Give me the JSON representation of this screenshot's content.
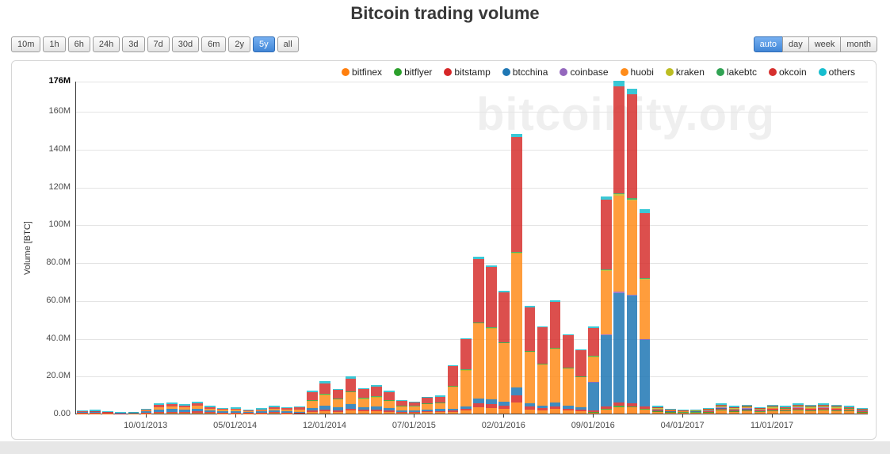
{
  "page": {
    "title": "Bitcoin trading volume",
    "watermark": "bitcoinity.org"
  },
  "toolbar": {
    "intervals": [
      {
        "label": "10m",
        "active": false
      },
      {
        "label": "1h",
        "active": false
      },
      {
        "label": "6h",
        "active": false
      },
      {
        "label": "24h",
        "active": false
      },
      {
        "label": "3d",
        "active": false
      },
      {
        "label": "7d",
        "active": false
      },
      {
        "label": "30d",
        "active": false
      },
      {
        "label": "6m",
        "active": false
      },
      {
        "label": "2y",
        "active": false
      },
      {
        "label": "5y",
        "active": true
      },
      {
        "label": "all",
        "active": false
      }
    ],
    "groupings": [
      {
        "label": "auto",
        "active": true
      },
      {
        "label": "day",
        "active": false
      },
      {
        "label": "week",
        "active": false
      },
      {
        "label": "month",
        "active": false
      }
    ]
  },
  "chart_data": {
    "type": "bar",
    "stacked": true,
    "title": "Bitcoin trading volume",
    "xlabel": "",
    "ylabel": "Volume [BTC]",
    "unit": "million BTC per month",
    "ymax": 176,
    "ymin": 0,
    "grid": true,
    "legend_position": "top",
    "yticks": [
      "0.00",
      "20.0M",
      "40.0M",
      "60.0M",
      "80.0M",
      "100M",
      "120M",
      "140M",
      "160M",
      "176M"
    ],
    "ytick_values": [
      0,
      20,
      40,
      60,
      80,
      100,
      120,
      140,
      160,
      176
    ],
    "xtick_labels": [
      "10/01/2013",
      "05/01/2014",
      "12/01/2014",
      "07/01/2015",
      "02/01/2016",
      "09/01/2016",
      "04/01/2017",
      "11/01/2017"
    ],
    "xtick_indices": [
      5,
      12,
      19,
      26,
      33,
      40,
      47,
      54
    ],
    "categories": [
      "05/2013",
      "06/2013",
      "07/2013",
      "08/2013",
      "09/2013",
      "10/2013",
      "11/2013",
      "12/2013",
      "01/2014",
      "02/2014",
      "03/2014",
      "04/2014",
      "05/2014",
      "06/2014",
      "07/2014",
      "08/2014",
      "09/2014",
      "10/2014",
      "11/2014",
      "12/2014",
      "01/2015",
      "02/2015",
      "03/2015",
      "04/2015",
      "05/2015",
      "06/2015",
      "07/2015",
      "08/2015",
      "09/2015",
      "10/2015",
      "11/2015",
      "12/2015",
      "01/2016",
      "02/2016",
      "03/2016",
      "04/2016",
      "05/2016",
      "06/2016",
      "07/2016",
      "08/2016",
      "09/2016",
      "10/2016",
      "11/2016",
      "12/2016",
      "01/2017",
      "02/2017",
      "03/2017",
      "04/2017",
      "05/2017",
      "06/2017",
      "07/2017",
      "08/2017",
      "09/2017",
      "10/2017",
      "11/2017",
      "12/2017",
      "01/2018",
      "02/2018",
      "03/2018",
      "04/2018",
      "05/2018",
      "06/2018"
    ],
    "series": [
      {
        "name": "bitfinex",
        "color": "#ff7f0e",
        "values": [
          0.1,
          0.1,
          0.1,
          0,
          0.1,
          0.2,
          0.4,
          0.4,
          0.4,
          0.5,
          0.3,
          0.2,
          0.2,
          0.2,
          0.2,
          0.3,
          0.2,
          0.3,
          1.0,
          1.3,
          1.0,
          1.5,
          1.1,
          1.2,
          1.0,
          0.6,
          0.5,
          0.7,
          0.8,
          1.0,
          1.6,
          3.3,
          3.1,
          2.6,
          5.9,
          2.3,
          1.8,
          2.4,
          1.7,
          1.4,
          0.9,
          2.3,
          3.5,
          3.4,
          2.2,
          1.1,
          0.7,
          0.6,
          0.6,
          0.8,
          1.5,
          1.1,
          1.3,
          1.0,
          1.3,
          1.2,
          1.6,
          1.3,
          1.6,
          1.3,
          1.2,
          0.8
        ]
      },
      {
        "name": "bitflyer",
        "color": "#2ca02c",
        "values": [
          0,
          0,
          0,
          0,
          0,
          0,
          0,
          0,
          0,
          0,
          0,
          0,
          0,
          0,
          0,
          0,
          0,
          0,
          0,
          0,
          0,
          0,
          0,
          0,
          0,
          0,
          0,
          0,
          0,
          0,
          0,
          0,
          0,
          0,
          0,
          0,
          0,
          0,
          0,
          0,
          0.1,
          0.2,
          0.5,
          0.5,
          0.3,
          0.3,
          0.2,
          0.2,
          0.2,
          0.2,
          0.4,
          0.3,
          0.4,
          0.3,
          0.4,
          0.3,
          0.4,
          0.4,
          0.4,
          0.4,
          0.3,
          0.2
        ]
      },
      {
        "name": "bitstamp",
        "color": "#d62728",
        "values": [
          0.4,
          0.4,
          0.2,
          0.2,
          0.2,
          0.3,
          0.6,
          0.6,
          0.5,
          0.7,
          0.4,
          0.3,
          0.3,
          0.2,
          0.3,
          0.4,
          0.4,
          0.2,
          0.7,
          1.0,
          0.8,
          1.2,
          0.8,
          0.9,
          0.7,
          0.4,
          0.4,
          0.5,
          0.6,
          0.6,
          1.0,
          2.0,
          1.9,
          1.6,
          3.6,
          1.4,
          1.1,
          1.5,
          1.0,
          0.8,
          0.5,
          1.2,
          1.8,
          1.7,
          1.1,
          0.6,
          0.4,
          0.3,
          0.4,
          0.5,
          0.9,
          0.6,
          0.7,
          0.6,
          0.7,
          0.6,
          0.9,
          0.7,
          0.9,
          0.7,
          0.6,
          0.5
        ]
      },
      {
        "name": "btcchina",
        "color": "#1f77b4",
        "values": [
          0.5,
          0.6,
          0.4,
          0.3,
          0.3,
          0.6,
          1.2,
          1.4,
          1.1,
          1.4,
          0.9,
          0.7,
          0.7,
          0.5,
          0.6,
          0.9,
          0.8,
          0.5,
          1.4,
          2.0,
          1.6,
          2.3,
          1.6,
          1.8,
          1.4,
          0.8,
          0.8,
          1.1,
          1.1,
          0.8,
          1.2,
          2.5,
          2.4,
          2.0,
          4.4,
          1.7,
          1.4,
          1.8,
          1.3,
          1.0,
          15.2,
          38.0,
          58.1,
          56.8,
          35.6,
          0.1,
          0.1,
          0,
          0.1,
          0.1,
          0.2,
          0.1,
          0.1,
          0,
          0,
          0,
          0,
          0,
          0,
          0,
          0,
          0
        ]
      },
      {
        "name": "coinbase",
        "color": "#9467bd",
        "values": [
          0,
          0,
          0,
          0,
          0,
          0,
          0,
          0,
          0,
          0,
          0,
          0,
          0,
          0,
          0,
          0,
          0,
          0,
          0,
          0,
          0,
          0,
          0,
          0,
          0,
          0,
          0,
          0,
          0,
          0,
          0,
          0,
          0,
          0,
          0,
          0,
          0,
          0,
          0,
          0,
          0.1,
          0.3,
          0.5,
          0.5,
          0.3,
          0.3,
          0.2,
          0.2,
          0.2,
          0.2,
          0.4,
          0.3,
          0.4,
          0.3,
          0.4,
          0.3,
          0.4,
          0.4,
          0.4,
          0.4,
          0.3,
          0.2
        ]
      },
      {
        "name": "huobi",
        "color": "#ff8c1a",
        "values": [
          0,
          0,
          0,
          0,
          0,
          0.5,
          1.3,
          1.4,
          1.2,
          1.5,
          0.9,
          0.7,
          0.8,
          0.5,
          0.7,
          0.9,
          0.8,
          1.2,
          4.0,
          5.6,
          4.3,
          6.4,
          4.5,
          5.0,
          4.0,
          2.3,
          2.2,
          3.0,
          3.1,
          12.2,
          19.2,
          40.0,
          37.8,
          31.2,
          71.0,
          27.4,
          22.1,
          28.8,
          20.2,
          16.3,
          13.3,
          33.4,
          51.0,
          49.9,
          31.3,
          0.3,
          0.2,
          0.1,
          0.1,
          0.2,
          0.3,
          0.3,
          0.3,
          0.2,
          0.3,
          0.2,
          0.3,
          0.3,
          0.3,
          0.3,
          0.2,
          0.2
        ]
      },
      {
        "name": "kraken",
        "color": "#bcbd22",
        "values": [
          0,
          0,
          0,
          0,
          0,
          0,
          0,
          0,
          0,
          0,
          0,
          0,
          0,
          0,
          0,
          0,
          0,
          0,
          0.1,
          0.2,
          0.1,
          0.2,
          0.1,
          0.1,
          0.1,
          0.1,
          0,
          0.1,
          0.1,
          0.1,
          0.1,
          0.2,
          0.2,
          0.2,
          0.2,
          0.2,
          0.1,
          0.2,
          0.1,
          0.1,
          0.1,
          0.3,
          0.5,
          0.5,
          0.3,
          0.4,
          0.2,
          0.2,
          0.2,
          0.3,
          0.5,
          0.4,
          0.4,
          0.3,
          0.4,
          0.4,
          0.5,
          0.4,
          0.5,
          0.4,
          0.4,
          0.3
        ]
      },
      {
        "name": "lakebtc",
        "color": "#31a354",
        "values": [
          0,
          0,
          0,
          0,
          0,
          0,
          0,
          0,
          0,
          0,
          0,
          0,
          0,
          0,
          0,
          0,
          0,
          0,
          0.1,
          0.2,
          0.2,
          0.3,
          0.2,
          0.2,
          0.1,
          0.1,
          0.1,
          0.1,
          0.1,
          0.1,
          0.2,
          0.3,
          0.3,
          0.2,
          0.4,
          0.2,
          0.1,
          0.2,
          0.1,
          0.1,
          0.2,
          0.5,
          0.7,
          0.7,
          0.4,
          0.1,
          0,
          0,
          0,
          0.1,
          0.1,
          0.1,
          0.1,
          0.1,
          0.1,
          0.1,
          0.1,
          0.1,
          0.1,
          0.1,
          0.1,
          0.1
        ]
      },
      {
        "name": "okcoin",
        "color": "#d6302e",
        "values": [
          0.1,
          0.1,
          0.1,
          0,
          0.1,
          0.5,
          1.1,
          1.2,
          1.0,
          1.3,
          0.8,
          0.6,
          0.6,
          0.4,
          0.5,
          0.8,
          0.7,
          1.3,
          4.1,
          5.8,
          4.4,
          6.6,
          4.6,
          5.1,
          4.1,
          2.4,
          2.2,
          3.1,
          3.2,
          10.4,
          16.2,
          33.5,
          31.7,
          26.2,
          60.6,
          23.0,
          19.0,
          24.2,
          17.2,
          13.9,
          14.7,
          36.8,
          56.3,
          55.0,
          34.6,
          0.3,
          0.2,
          0.1,
          0.1,
          0.2,
          0.5,
          0.3,
          0.3,
          0.3,
          0.4,
          0.4,
          0.5,
          0.4,
          0.5,
          0.4,
          0.4,
          0.2
        ]
      },
      {
        "name": "others",
        "color": "#17becf",
        "values": [
          0.7,
          0.8,
          0.4,
          0.3,
          0.3,
          0.4,
          0.9,
          1.0,
          0.8,
          1.1,
          0.7,
          0.5,
          0.6,
          0.4,
          0.5,
          0.7,
          0.6,
          0.3,
          0.6,
          0.9,
          0.6,
          1.0,
          0.6,
          0.7,
          0.6,
          0.3,
          0.3,
          0.4,
          0.5,
          0.3,
          0.5,
          1.2,
          1.1,
          1.0,
          1.9,
          0.8,
          0.4,
          0.9,
          0.4,
          0.4,
          0.9,
          2.0,
          3.1,
          3.0,
          1.9,
          0.5,
          0.3,
          0.3,
          0.3,
          0.4,
          0.7,
          0.5,
          0.5,
          0.4,
          0.5,
          0.5,
          0.8,
          0.5,
          0.8,
          0.5,
          0.5,
          0.4
        ]
      }
    ]
  }
}
